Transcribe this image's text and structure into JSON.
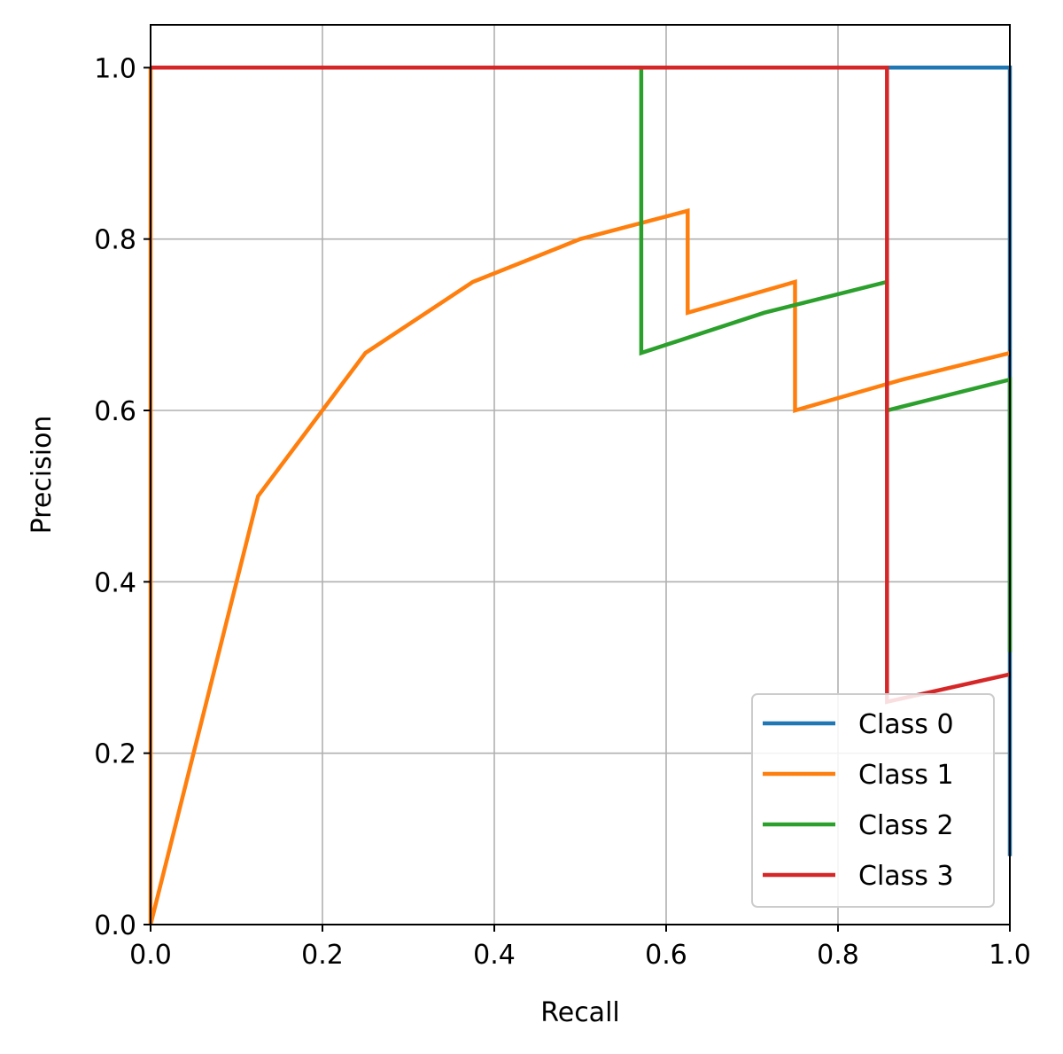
{
  "chart_data": {
    "type": "line",
    "title": "",
    "xlabel": "Recall",
    "ylabel": "Precision",
    "xlim": [
      0.0,
      1.0
    ],
    "ylim": [
      0.0,
      1.05
    ],
    "xticks": [
      0.0,
      0.2,
      0.4,
      0.6,
      0.8,
      1.0
    ],
    "xtick_labels": [
      "0.0",
      "0.2",
      "0.4",
      "0.6",
      "0.8",
      "1.0"
    ],
    "yticks": [
      0.0,
      0.2,
      0.4,
      0.6,
      0.8,
      1.0
    ],
    "ytick_labels": [
      "0.0",
      "0.2",
      "0.4",
      "0.6",
      "0.8",
      "1.0"
    ],
    "grid": true,
    "legend_position": "lower-right",
    "series": [
      {
        "name": "Class 0",
        "color": "#1f77b4",
        "x": [
          0.0,
          0.0,
          1.0,
          1.0
        ],
        "y": [
          1.0,
          1.0,
          1.0,
          0.08
        ]
      },
      {
        "name": "Class 1",
        "color": "#ff7f0e",
        "x": [
          0.0,
          0.0,
          0.125,
          0.25,
          0.375,
          0.5,
          0.625,
          0.625,
          0.75,
          0.75,
          0.875,
          1.0,
          1.0
        ],
        "y": [
          1.0,
          0.0,
          0.5,
          0.667,
          0.75,
          0.8,
          0.833,
          0.714,
          0.75,
          0.6,
          0.636,
          0.667,
          0.667
        ]
      },
      {
        "name": "Class 2",
        "color": "#2ca02c",
        "x": [
          0.0,
          0.571,
          0.571,
          0.714,
          0.857,
          0.857,
          1.0,
          1.0
        ],
        "y": [
          1.0,
          1.0,
          0.667,
          0.714,
          0.75,
          0.6,
          0.636,
          0.318
        ]
      },
      {
        "name": "Class 3",
        "color": "#d62728",
        "x": [
          0.0,
          0.857,
          0.857,
          1.0
        ],
        "y": [
          1.0,
          1.0,
          0.26,
          0.292
        ]
      }
    ]
  }
}
